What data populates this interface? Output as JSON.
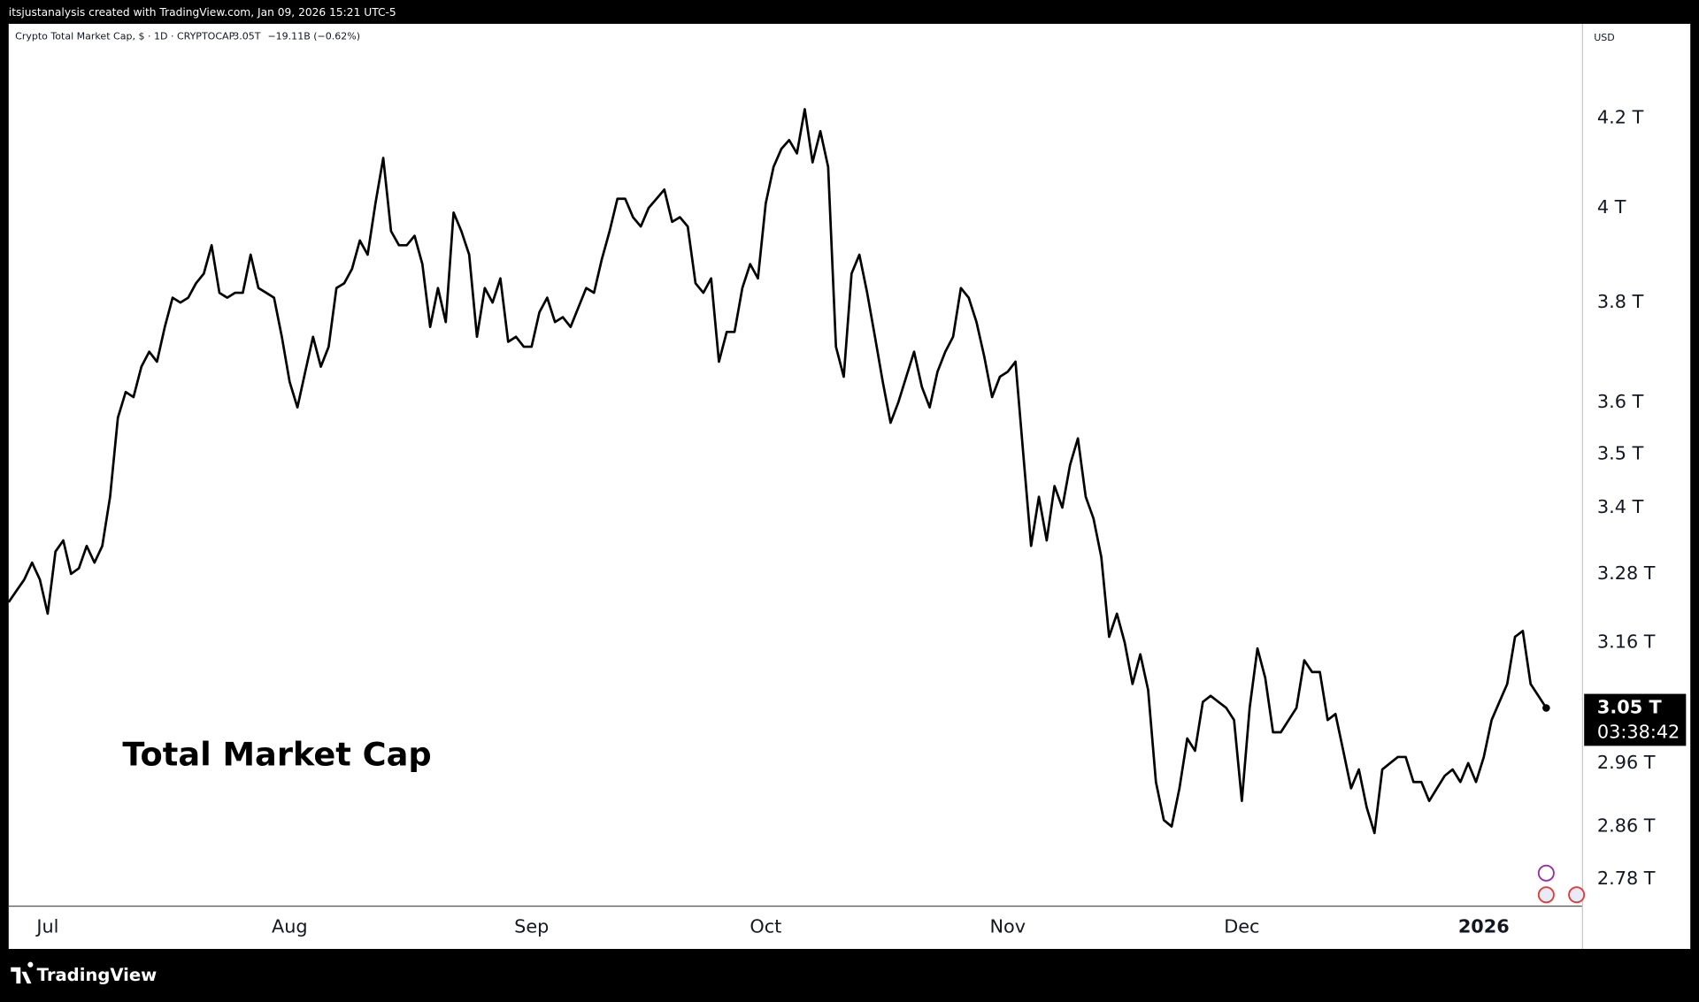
{
  "header": {
    "credit": "itsjustanalysis created with TradingView.com, Jan 09, 2026 15:21 UTC-5"
  },
  "legend": {
    "symbol": "Crypto Total Market Cap, $ · 1D · CRYPTOCAP",
    "last": "3.05T",
    "change": "−19.11B (−0.62%)"
  },
  "footer": {
    "brand": "TradingView"
  },
  "chart_data": {
    "type": "line",
    "annotation": "Total Market Cap",
    "currency": "USD",
    "color": "#000000",
    "log_scale": true,
    "grid": false,
    "ylim": [
      2.74,
      4.42
    ],
    "yticks": [
      {
        "value": 2.78,
        "label": "2.78 T"
      },
      {
        "value": 2.86,
        "label": "2.86 T"
      },
      {
        "value": 2.96,
        "label": "2.96 T"
      },
      {
        "value": 3.16,
        "label": "3.16 T"
      },
      {
        "value": 3.28,
        "label": "3.28 T"
      },
      {
        "value": 3.4,
        "label": "3.4 T"
      },
      {
        "value": 3.5,
        "label": "3.5 T"
      },
      {
        "value": 3.6,
        "label": "3.6 T"
      },
      {
        "value": 3.8,
        "label": "3.8 T"
      },
      {
        "value": 4,
        "label": "4 T"
      },
      {
        "value": 4.2,
        "label": "4.2 T"
      }
    ],
    "last_price": {
      "value": 3.05,
      "label": "3.05 T"
    },
    "countdown": "03:38:42",
    "categories": [
      null,
      null,
      null,
      null,
      null,
      "Jul",
      null,
      null,
      null,
      null,
      null,
      null,
      null,
      null,
      null,
      null,
      null,
      null,
      null,
      null,
      null,
      null,
      null,
      null,
      null,
      null,
      null,
      null,
      null,
      null,
      null,
      null,
      null,
      null,
      null,
      null,
      "Aug",
      null,
      null,
      null,
      null,
      null,
      null,
      null,
      null,
      null,
      null,
      null,
      null,
      null,
      null,
      null,
      null,
      null,
      null,
      null,
      null,
      null,
      null,
      null,
      null,
      null,
      null,
      null,
      null,
      null,
      null,
      "Sep",
      null,
      null,
      null,
      null,
      null,
      null,
      null,
      null,
      null,
      null,
      null,
      null,
      null,
      null,
      null,
      null,
      null,
      null,
      null,
      null,
      null,
      null,
      null,
      null,
      null,
      null,
      null,
      null,
      null,
      "Oct",
      null,
      null,
      null,
      null,
      null,
      null,
      null,
      null,
      null,
      null,
      null,
      null,
      null,
      null,
      null,
      null,
      null,
      null,
      null,
      null,
      null,
      null,
      null,
      null,
      null,
      null,
      null,
      null,
      null,
      null,
      "Nov",
      null,
      null,
      null,
      null,
      null,
      null,
      null,
      null,
      null,
      null,
      null,
      null,
      null,
      null,
      null,
      null,
      null,
      null,
      null,
      null,
      null,
      null,
      null,
      null,
      null,
      null,
      null,
      null,
      null,
      "Dec",
      null,
      null,
      null,
      null,
      null,
      null,
      null,
      null,
      null,
      null,
      null,
      null,
      null,
      null,
      null,
      null,
      null,
      null,
      null,
      null,
      null,
      null,
      null,
      null,
      null,
      null,
      null,
      null,
      null,
      null,
      "2026",
      null,
      null,
      null,
      null,
      null,
      null,
      null,
      null
    ],
    "values": [
      3.23,
      3.25,
      3.27,
      3.3,
      3.27,
      3.21,
      3.32,
      3.34,
      3.28,
      3.29,
      3.33,
      3.3,
      3.33,
      3.42,
      3.57,
      3.62,
      3.61,
      3.67,
      3.7,
      3.68,
      3.75,
      3.81,
      3.8,
      3.81,
      3.84,
      3.86,
      3.92,
      3.82,
      3.81,
      3.82,
      3.82,
      3.9,
      3.83,
      3.82,
      3.81,
      3.73,
      3.64,
      3.59,
      3.66,
      3.73,
      3.67,
      3.71,
      3.83,
      3.84,
      3.87,
      3.93,
      3.9,
      4.01,
      4.11,
      3.95,
      3.92,
      3.92,
      3.94,
      3.88,
      3.75,
      3.83,
      3.76,
      3.99,
      3.95,
      3.9,
      3.73,
      3.83,
      3.8,
      3.85,
      3.72,
      3.73,
      3.71,
      3.71,
      3.78,
      3.81,
      3.76,
      3.77,
      3.75,
      3.79,
      3.83,
      3.82,
      3.89,
      3.95,
      4.02,
      4.02,
      3.98,
      3.96,
      4.0,
      4.02,
      4.04,
      3.97,
      3.98,
      3.96,
      3.84,
      3.82,
      3.85,
      3.68,
      3.74,
      3.74,
      3.83,
      3.88,
      3.85,
      4.01,
      4.09,
      4.13,
      4.15,
      4.12,
      4.22,
      4.1,
      4.17,
      4.09,
      3.71,
      3.65,
      3.86,
      3.9,
      3.82,
      3.73,
      3.64,
      3.56,
      3.6,
      3.65,
      3.7,
      3.63,
      3.59,
      3.66,
      3.7,
      3.73,
      3.83,
      3.81,
      3.76,
      3.69,
      3.61,
      3.65,
      3.66,
      3.68,
      3.5,
      3.33,
      3.42,
      3.34,
      3.44,
      3.4,
      3.48,
      3.53,
      3.42,
      3.38,
      3.31,
      3.17,
      3.21,
      3.16,
      3.09,
      3.14,
      3.08,
      2.93,
      2.87,
      2.86,
      2.92,
      3.0,
      2.98,
      3.06,
      3.07,
      3.06,
      3.05,
      3.03,
      2.9,
      3.05,
      3.15,
      3.1,
      3.01,
      3.01,
      3.03,
      3.05,
      3.13,
      3.11,
      3.11,
      3.03,
      3.04,
      2.98,
      2.92,
      2.95,
      2.89,
      2.85,
      2.95,
      2.96,
      2.97,
      2.97,
      2.93,
      2.93,
      2.9,
      2.92,
      2.94,
      2.95,
      2.93,
      2.96,
      2.93,
      2.97,
      3.03,
      3.06,
      3.09,
      3.17,
      3.18,
      3.09,
      3.07,
      3.05
    ]
  }
}
